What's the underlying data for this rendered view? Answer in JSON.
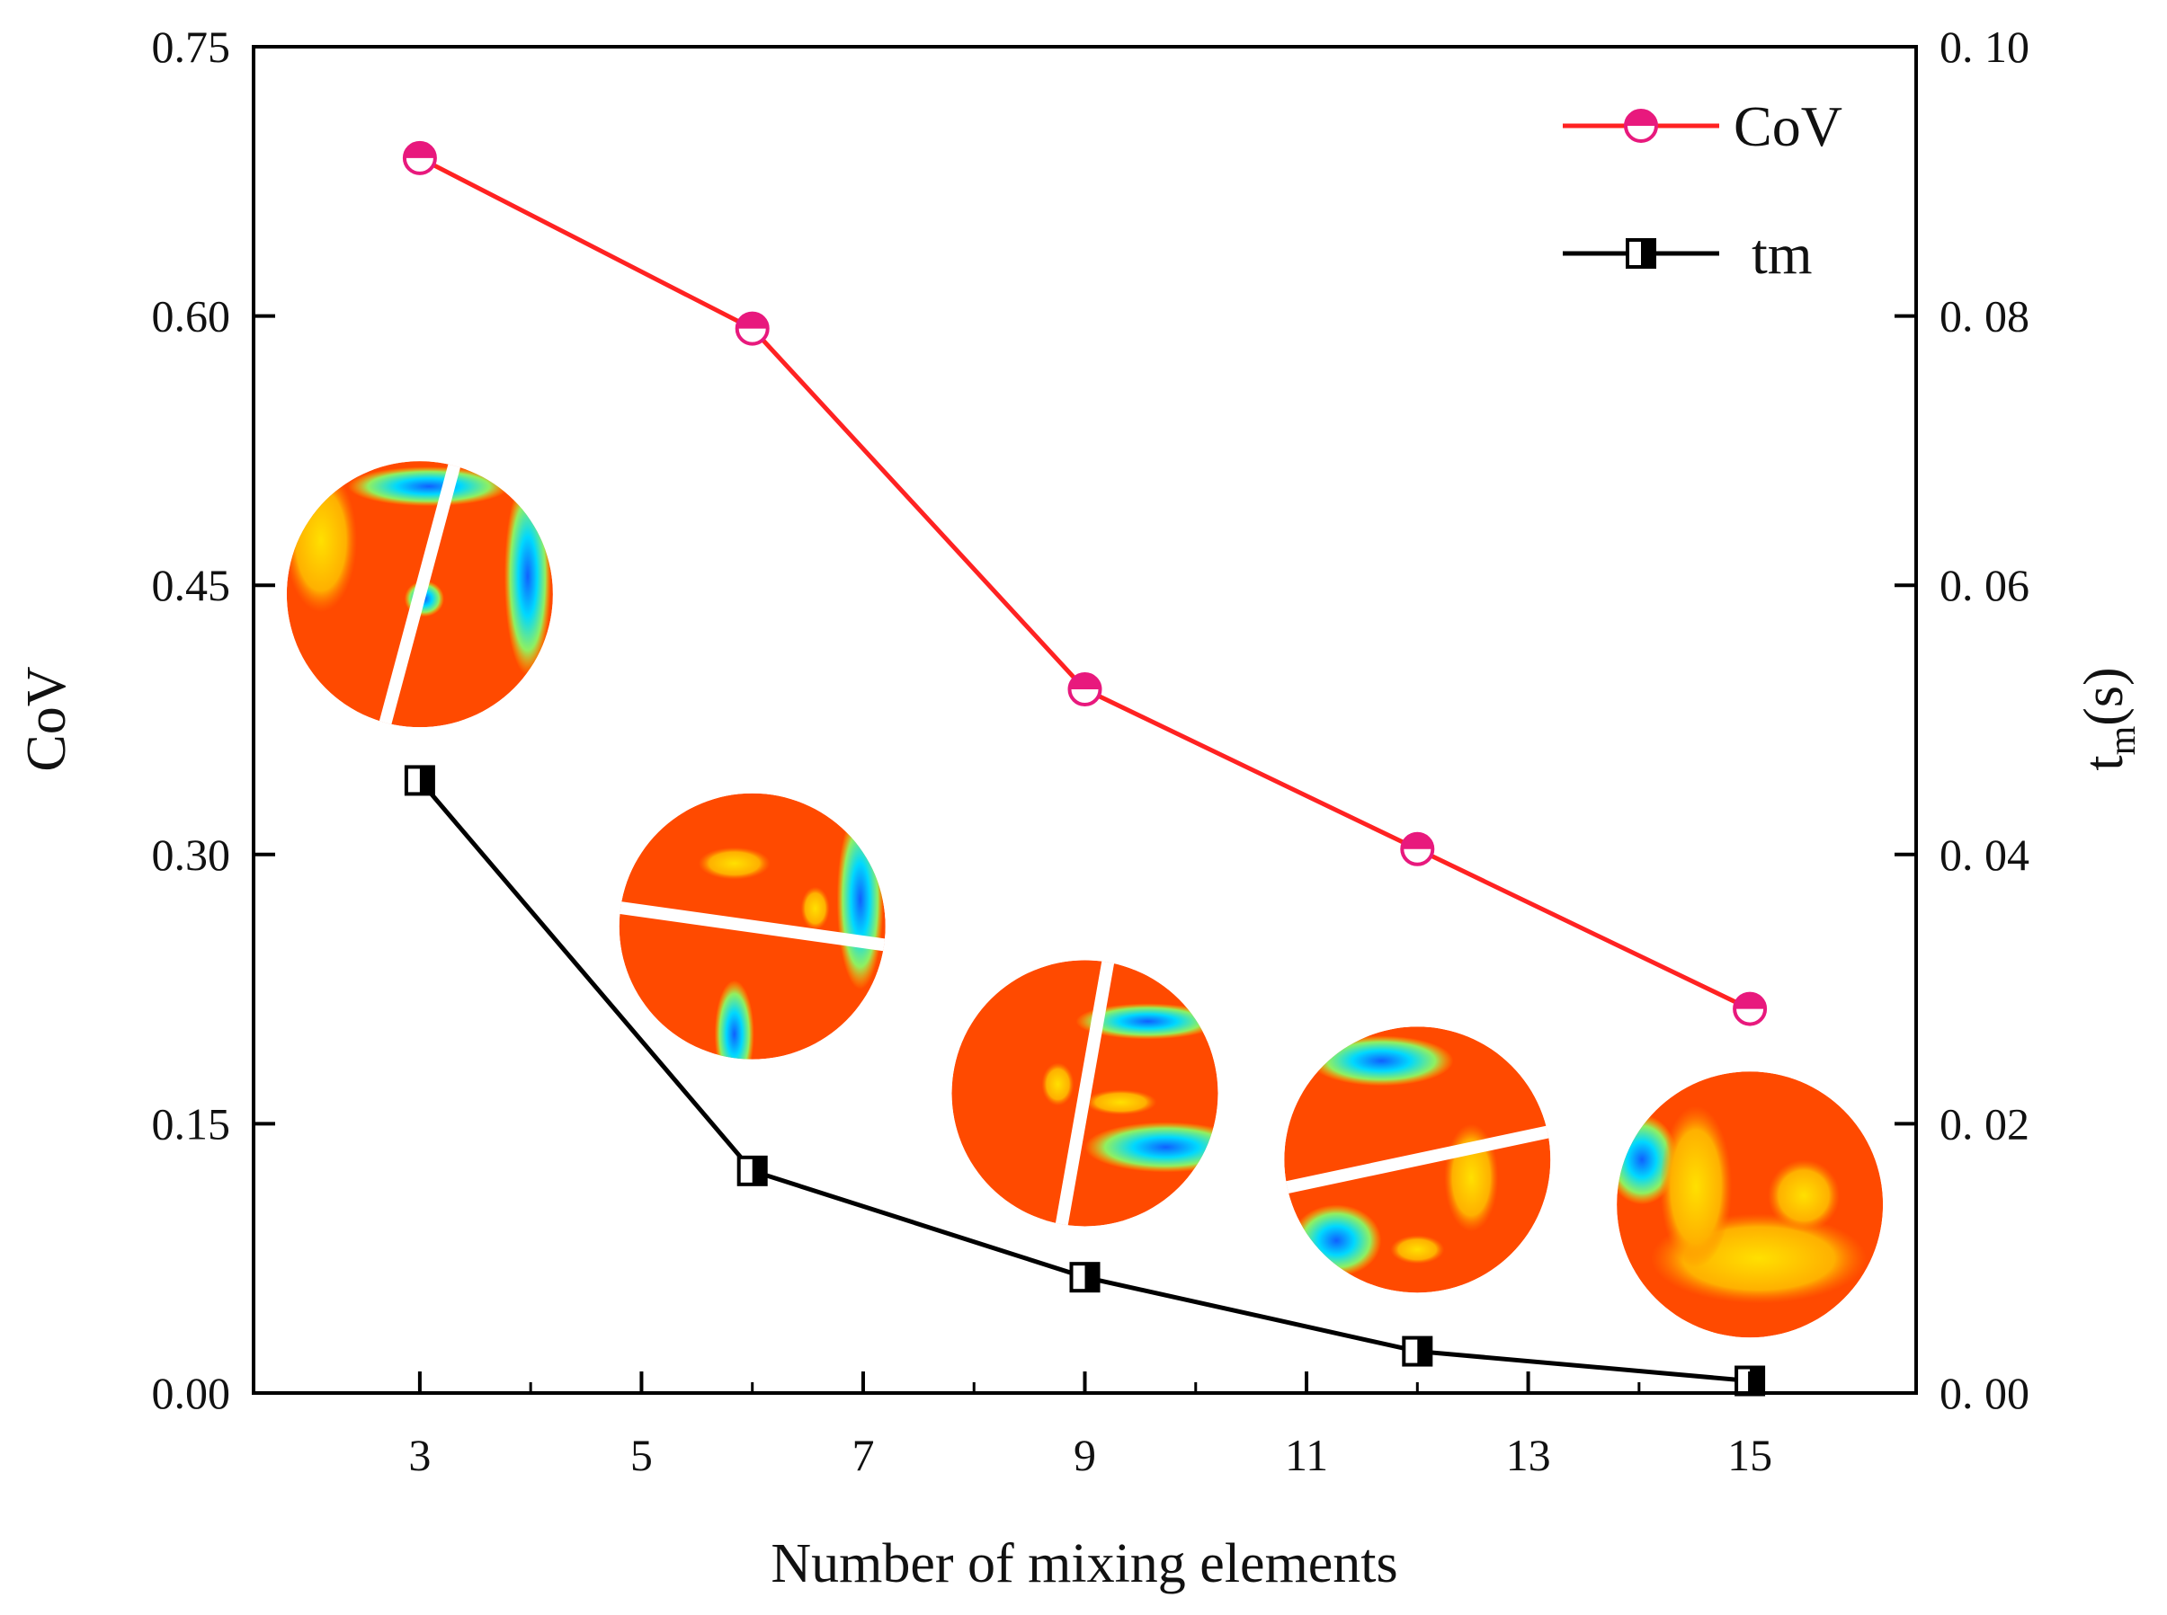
{
  "chart_data": {
    "type": "line",
    "xlabel": "Number of mixing elements",
    "ylabel_left": "CoV",
    "ylabel_right_main": "t",
    "ylabel_right_sub": "m",
    "ylabel_right_unit": "(s)",
    "xlim": [
      1.5,
      16.5
    ],
    "x_ticks": [
      "3",
      "5",
      "7",
      "9",
      "11",
      "13",
      "15"
    ],
    "x_tick_values": [
      3,
      5,
      7,
      9,
      11,
      13,
      15
    ],
    "ylim_left": [
      0,
      0.75
    ],
    "y_left_ticks": [
      "0.00",
      "0.15",
      "0.30",
      "0.45",
      "0.60",
      "0.75"
    ],
    "y_left_tick_values": [
      0,
      0.15,
      0.3,
      0.45,
      0.6,
      0.75
    ],
    "ylim_right": [
      0,
      0.1
    ],
    "y_right_ticks": [
      "0. 00",
      "0. 02",
      "0. 04",
      "0. 06",
      "0. 08",
      "0. 10"
    ],
    "y_right_tick_values": [
      0,
      0.02,
      0.04,
      0.06,
      0.08,
      0.1
    ],
    "legend_position": "top-right",
    "grid": false,
    "series": [
      {
        "name": "CoV",
        "axis": "left",
        "color": "#ff2222",
        "marker_color": "#e8197d",
        "marker": "half-filled-circle",
        "x": [
          3,
          6,
          9,
          12,
          15
        ],
        "y": [
          0.688,
          0.593,
          0.392,
          0.303,
          0.214
        ]
      },
      {
        "name": "tm",
        "axis": "right",
        "color": "#000000",
        "marker": "half-filled-square",
        "x": [
          3,
          6,
          9,
          12,
          15
        ],
        "y": [
          0.0455,
          0.0165,
          0.0086,
          0.0031,
          0.0009
        ]
      }
    ],
    "insets": [
      {
        "id": "contour-3",
        "x": 3,
        "cov_level": 0.445
      },
      {
        "id": "contour-6",
        "x": 6,
        "cov_level": 0.26
      },
      {
        "id": "contour-9",
        "x": 9,
        "cov_level": 0.167
      },
      {
        "id": "contour-12",
        "x": 12,
        "cov_level": 0.13
      },
      {
        "id": "contour-15",
        "x": 15,
        "cov_level": 0.105
      }
    ]
  }
}
